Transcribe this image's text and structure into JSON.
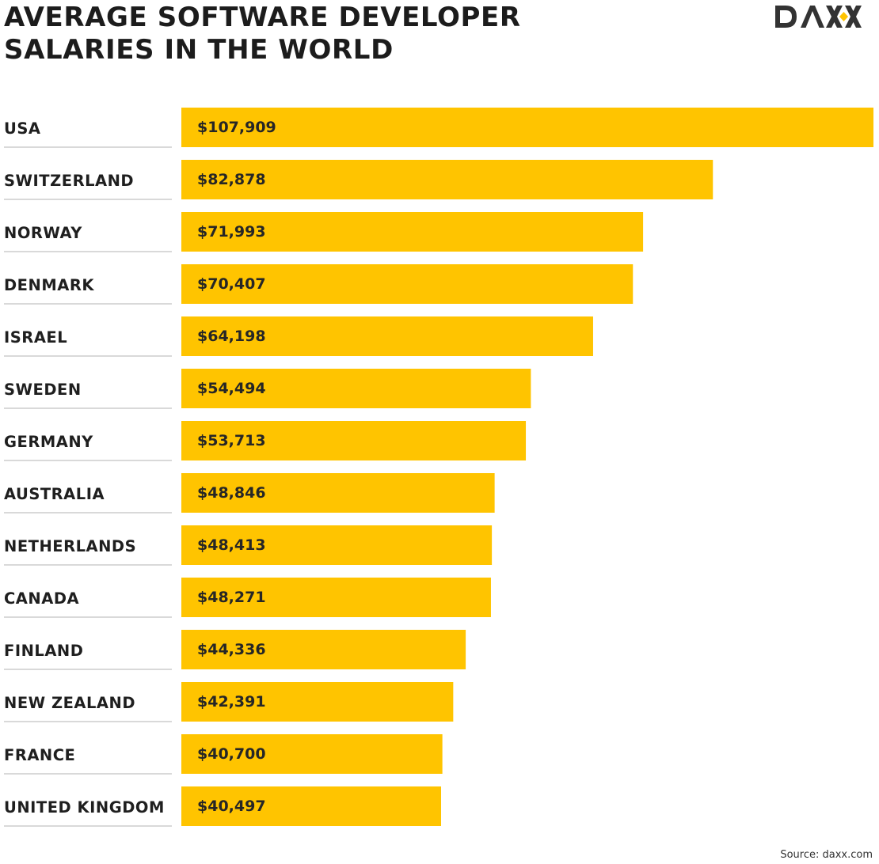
{
  "header": {
    "title_line1": "AVERAGE SOFTWARE DEVELOPER",
    "title_line2": "SALARIES IN THE WORLD",
    "logo_text": "DAXX"
  },
  "colors": {
    "bar": "#FFC400",
    "text": "#1F1F1F",
    "divider": "#D9D9D9",
    "logo_accent": "#FFC400"
  },
  "chart_data": {
    "type": "bar",
    "orientation": "horizontal",
    "title": "AVERAGE SOFTWARE DEVELOPER SALARIES IN THE WORLD",
    "categories": [
      "USA",
      "SWITZERLAND",
      "NORWAY",
      "DENMARK",
      "ISRAEL",
      "SWEDEN",
      "GERMANY",
      "AUSTRALIA",
      "NETHERLANDS",
      "CANADA",
      "FINLAND",
      "NEW ZEALAND",
      "FRANCE",
      "UNITED KINGDOM"
    ],
    "values": [
      107909,
      82878,
      71993,
      70407,
      64198,
      54494,
      53713,
      48846,
      48413,
      48271,
      44336,
      42391,
      40700,
      40497
    ],
    "value_labels": [
      "$107,909",
      "$82,878",
      "$71,993",
      "$70,407",
      "$64,198",
      "$54,494",
      "$53,713",
      "$48,846",
      "$48,413",
      "$48,271",
      "$44,336",
      "$42,391",
      "$40,700",
      "$40,497"
    ],
    "xlim": [
      0,
      107909
    ],
    "grid": false,
    "legend": "none"
  },
  "footer": {
    "source": "Source: daxx.com"
  }
}
